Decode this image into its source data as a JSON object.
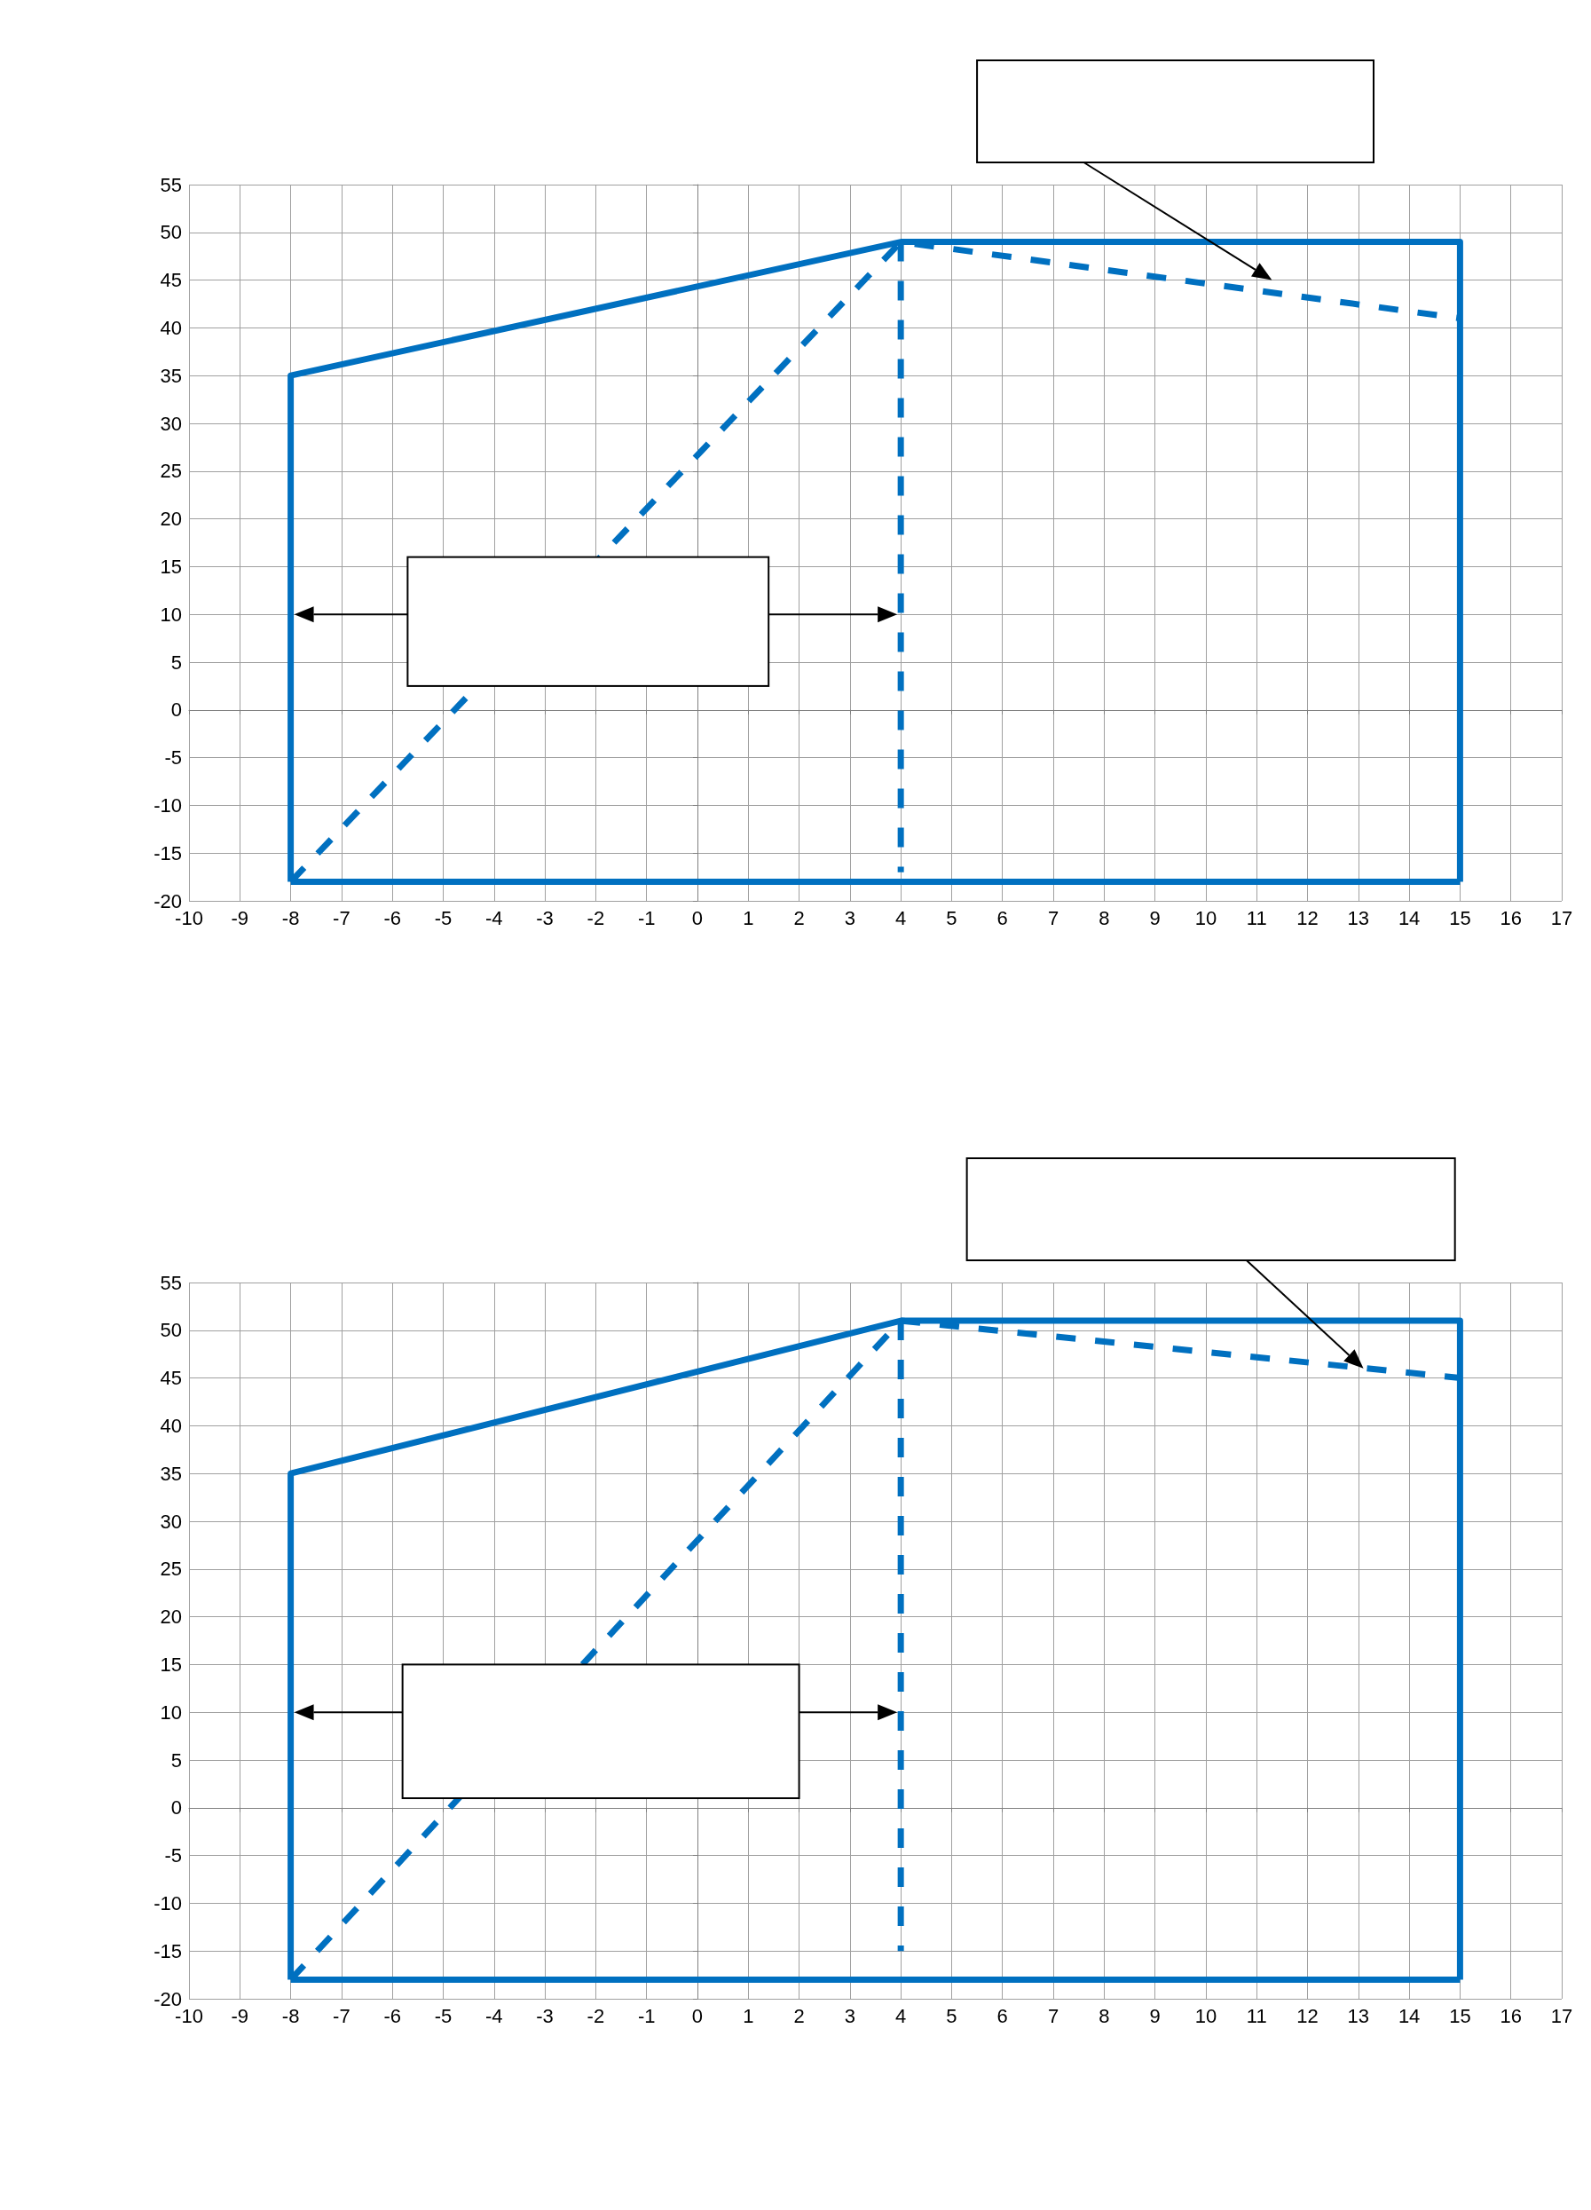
{
  "chart_data": [
    {
      "type": "line",
      "xlim": [
        -10,
        17
      ],
      "xticks": [
        -10,
        -9,
        -8,
        -7,
        -6,
        -5,
        -4,
        -3,
        -2,
        -1,
        0,
        1,
        2,
        3,
        4,
        5,
        6,
        7,
        8,
        9,
        10,
        11,
        12,
        13,
        14,
        15,
        16,
        17
      ],
      "ylim": [
        -20,
        55
      ],
      "yticks": [
        -20,
        -15,
        -10,
        -5,
        0,
        5,
        10,
        15,
        20,
        25,
        30,
        35,
        40,
        45,
        50,
        55
      ],
      "grid": true,
      "marker": "none",
      "series": [
        {
          "color": "#0070c0",
          "line_style": "solid",
          "x": [
            -8,
            -8,
            4,
            15,
            15
          ],
          "values": [
            -18,
            35,
            49,
            49,
            -18
          ]
        },
        {
          "color": "#0070c0",
          "line_style": "solid",
          "x": [
            -8,
            15
          ],
          "values": [
            -18,
            -18
          ]
        },
        {
          "color": "#0070c0",
          "line_style": "dashed",
          "x": [
            -8,
            4,
            15
          ],
          "values": [
            -18,
            49,
            41
          ]
        },
        {
          "color": "#0070c0",
          "line_style": "dashed",
          "x": [
            4,
            4
          ],
          "values": [
            49,
            -17
          ]
        }
      ]
    },
    {
      "type": "line",
      "xlim": [
        -10,
        17
      ],
      "xticks": [
        -10,
        -9,
        -8,
        -7,
        -6,
        -5,
        -4,
        -3,
        -2,
        -1,
        0,
        1,
        2,
        3,
        4,
        5,
        6,
        7,
        8,
        9,
        10,
        11,
        12,
        13,
        14,
        15,
        16,
        17
      ],
      "ylim": [
        -20,
        55
      ],
      "yticks": [
        -20,
        -15,
        -10,
        -5,
        0,
        5,
        10,
        15,
        20,
        25,
        30,
        35,
        40,
        45,
        50,
        55
      ],
      "grid": true,
      "marker": "none",
      "series": [
        {
          "color": "#0070c0",
          "line_style": "solid",
          "x": [
            -8,
            -8,
            4,
            15,
            15
          ],
          "values": [
            -18,
            35,
            51,
            51,
            -18
          ]
        },
        {
          "color": "#0070c0",
          "line_style": "solid",
          "x": [
            -8,
            15
          ],
          "values": [
            -18,
            -18
          ]
        },
        {
          "color": "#0070c0",
          "line_style": "dashed",
          "x": [
            -8,
            4,
            15
          ],
          "values": [
            -18,
            51,
            45
          ]
        },
        {
          "color": "#0070c0",
          "line_style": "dashed",
          "x": [
            4,
            4
          ],
          "values": [
            51,
            -15
          ]
        }
      ]
    }
  ]
}
